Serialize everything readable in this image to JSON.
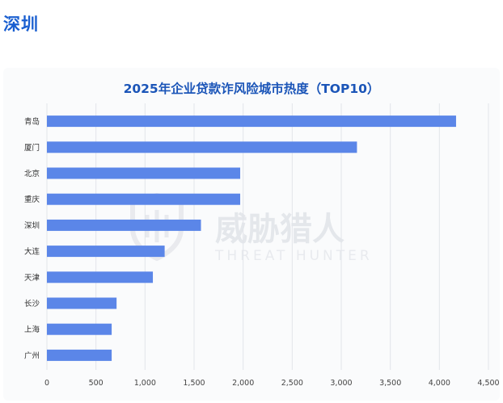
{
  "page": {
    "heading": "深圳"
  },
  "watermark": {
    "name_cn": "威胁猎人",
    "name_en": "THREAT HUNTER",
    "logo_icon": "shield-logo-icon"
  },
  "colors": {
    "heading": "#1a5fd0",
    "bar": "#5b86e8",
    "title": "#1b55b8",
    "grid": "#e2e5ea"
  },
  "chart_data": {
    "type": "bar",
    "orientation": "horizontal",
    "title": "2025年企业贷款诈风险城市热度（TOP10）",
    "categories": [
      "青岛",
      "厦门",
      "北京",
      "重庆",
      "深圳",
      "大连",
      "天津",
      "长沙",
      "上海",
      "广州"
    ],
    "values": [
      4170,
      3160,
      1970,
      1970,
      1570,
      1200,
      1080,
      710,
      660,
      660
    ],
    "xlim": [
      0,
      4500
    ],
    "xticks": [
      0,
      500,
      1000,
      1500,
      2000,
      2500,
      3000,
      3500,
      4000,
      4500
    ],
    "xtick_labels": [
      "0",
      "500",
      "1,000",
      "1,500",
      "2,000",
      "2,500",
      "3,000",
      "3,500",
      "4,000",
      "4,500"
    ],
    "xlabel": "",
    "ylabel": "",
    "grid": "vertical",
    "legend": "none"
  }
}
